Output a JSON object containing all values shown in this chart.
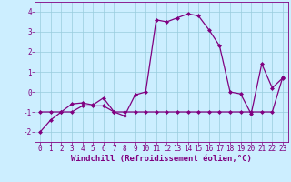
{
  "xlabel": "Windchill (Refroidissement éolien,°C)",
  "line1_x": [
    0,
    1,
    2,
    3,
    4,
    5,
    6,
    7,
    8,
    9,
    10,
    11,
    12,
    13,
    14,
    15,
    16,
    17,
    18,
    19,
    20,
    21,
    22,
    23
  ],
  "line1_y": [
    -2.0,
    -1.4,
    -1.0,
    -0.6,
    -0.55,
    -0.65,
    -0.3,
    -1.0,
    -1.2,
    -0.15,
    0.0,
    3.6,
    3.5,
    3.7,
    3.9,
    3.8,
    3.1,
    2.3,
    0.0,
    -0.1,
    -1.1,
    1.4,
    0.2,
    0.7
  ],
  "line2_x": [
    0,
    1,
    2,
    3,
    4,
    5,
    6,
    7,
    8,
    9,
    10,
    11,
    12,
    13,
    14,
    15,
    16,
    17,
    18,
    19,
    20,
    21,
    22,
    23
  ],
  "line2_y": [
    -1.0,
    -1.0,
    -1.0,
    -1.0,
    -0.7,
    -0.7,
    -0.7,
    -1.0,
    -1.0,
    -1.0,
    -1.0,
    -1.0,
    -1.0,
    -1.0,
    -1.0,
    -1.0,
    -1.0,
    -1.0,
    -1.0,
    -1.0,
    -1.0,
    -1.0,
    -1.0,
    0.75
  ],
  "line_color": "#800080",
  "marker": "D",
  "marker_size": 2.0,
  "bg_color": "#cceeff",
  "grid_color": "#99ccdd",
  "ylim": [
    -2.5,
    4.5
  ],
  "xlim": [
    -0.5,
    23.5
  ],
  "yticks": [
    -2,
    -1,
    0,
    1,
    2,
    3,
    4
  ],
  "xticks": [
    0,
    1,
    2,
    3,
    4,
    5,
    6,
    7,
    8,
    9,
    10,
    11,
    12,
    13,
    14,
    15,
    16,
    17,
    18,
    19,
    20,
    21,
    22,
    23
  ],
  "tick_fontsize": 5.5,
  "label_fontsize": 6.5,
  "line_width": 0.9
}
